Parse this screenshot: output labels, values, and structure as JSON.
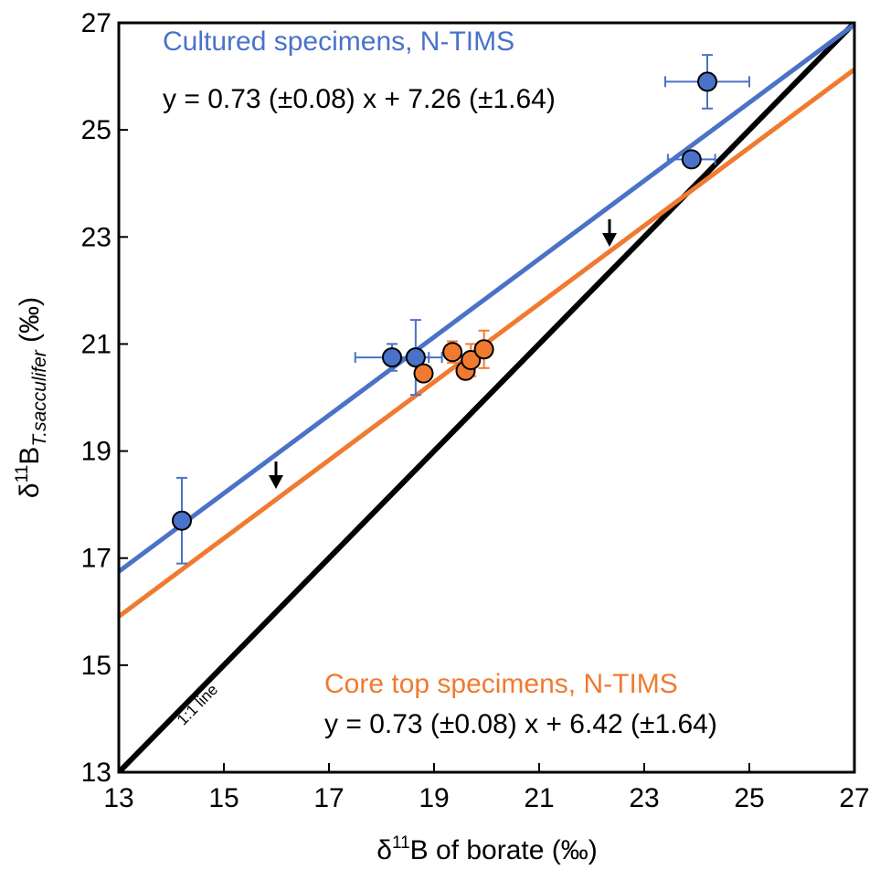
{
  "chart_data": {
    "type": "scatter",
    "xlabel": {
      "prefix": "δ",
      "sup": "11",
      "main": "B of borate (‰)"
    },
    "ylabel": {
      "prefix": "δ",
      "sup": "11",
      "main": "B",
      "sub": "T.sacculifer",
      "suffix": " (‰)"
    },
    "xlim": [
      13,
      27
    ],
    "ylim": [
      13,
      27
    ],
    "xticks": [
      13,
      15,
      17,
      19,
      21,
      23,
      25,
      27
    ],
    "yticks": [
      13,
      15,
      17,
      19,
      21,
      23,
      25,
      27
    ],
    "identity_line": {
      "label": "1:1 line",
      "color": "#000000"
    },
    "series": [
      {
        "name": "Cultured specimens, N-TIMS",
        "color": "#4a72c8",
        "equation": "y = 0.73 (±0.08) x + 7.26 (±1.64)",
        "fit": {
          "slope": 0.73,
          "intercept": 7.26
        },
        "x": [
          14.2,
          18.2,
          18.65,
          23.9,
          24.2
        ],
        "y": [
          17.7,
          20.75,
          20.75,
          24.45,
          25.9
        ],
        "xerr": [
          0.12,
          0.7,
          0.5,
          0.45,
          0.8
        ],
        "yerr": [
          0.8,
          0.25,
          0.7,
          0.1,
          0.5
        ]
      },
      {
        "name": "Core top specimens, N-TIMS",
        "color": "#f07a30",
        "equation": "y = 0.73 (±0.08) x + 6.42 (±1.64)",
        "fit": {
          "slope": 0.73,
          "intercept": 6.42
        },
        "x": [
          18.8,
          19.35,
          19.6,
          19.7,
          19.95
        ],
        "y": [
          20.45,
          20.85,
          20.5,
          20.7,
          20.9
        ],
        "xerr": [
          null,
          null,
          null,
          null,
          null
        ],
        "yerr": [
          null,
          0.2,
          0.15,
          0.3,
          0.35
        ]
      }
    ]
  }
}
